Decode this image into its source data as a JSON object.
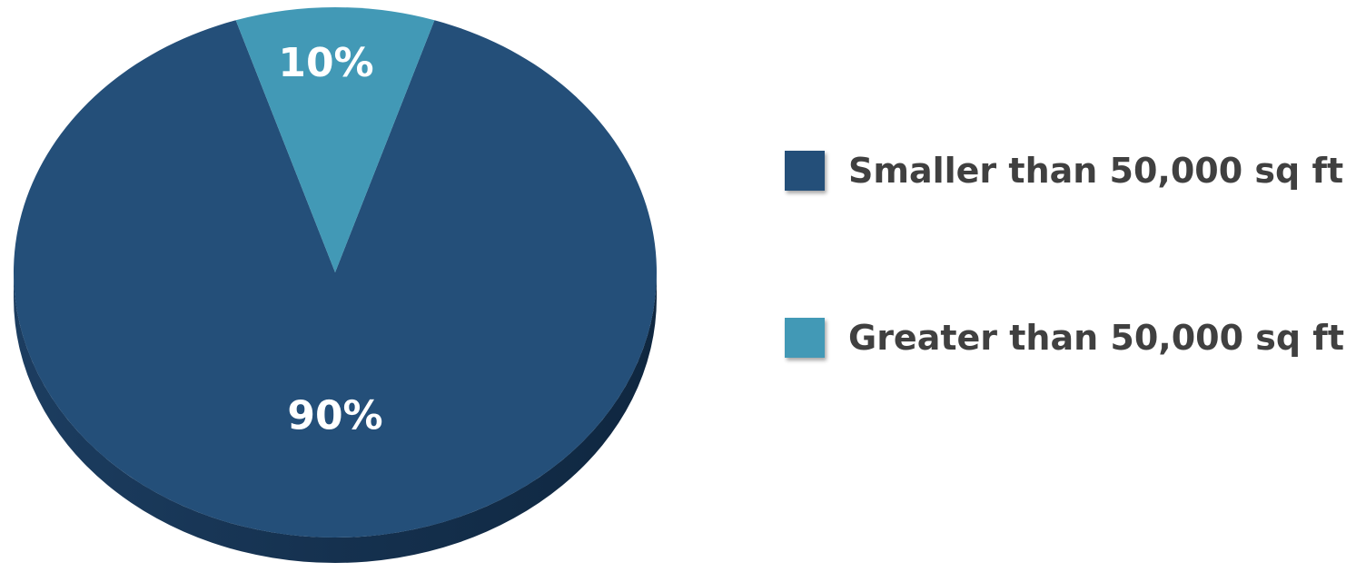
{
  "chart_data": {
    "type": "pie",
    "title": "",
    "categories": [
      "Smaller than 50,000 sq ft",
      "Greater than 50,000 sq ft"
    ],
    "values": [
      90,
      10
    ],
    "data_labels": [
      "90%",
      "10%"
    ],
    "colors": [
      "#244f79",
      "#4299b6"
    ],
    "legend": {
      "position": "right",
      "entries": [
        "Smaller than 50,000 sq ft",
        "Greater than 50,000 sq ft"
      ]
    },
    "start_angle_deg": -18,
    "direction": "clockwise"
  }
}
